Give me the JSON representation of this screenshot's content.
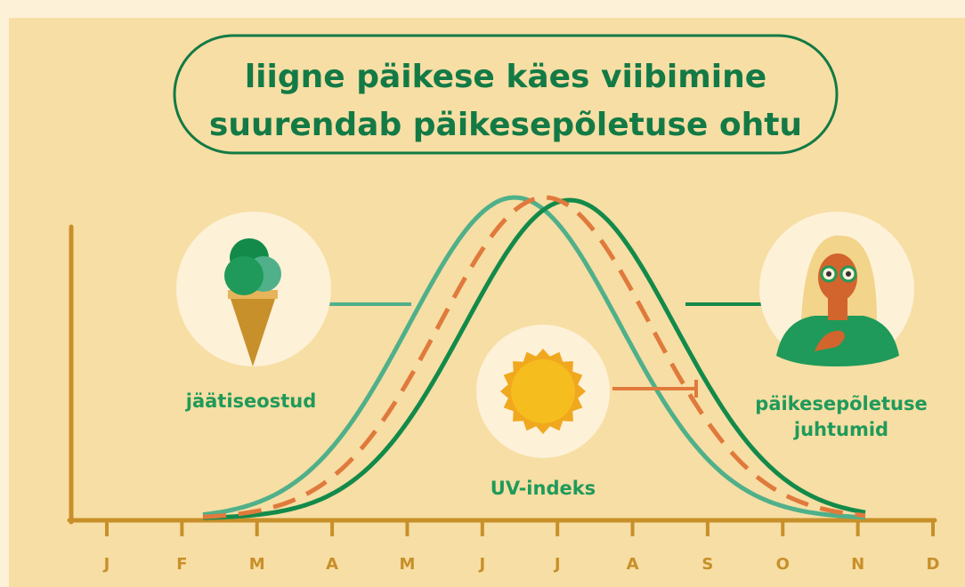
{
  "title": {
    "lines": [
      "liigne päikese käes viibimine",
      "suurendab päikesepõletuse ohtu"
    ]
  },
  "labels": {
    "ice_cream": "jäätiseostud",
    "uv": "UV-indeks",
    "sunburn": [
      "päikesepõletuse",
      "juhtumid"
    ]
  },
  "months": [
    "J",
    "F",
    "M",
    "A",
    "M",
    "J",
    "J",
    "A",
    "S",
    "O",
    "N",
    "D"
  ]
}
